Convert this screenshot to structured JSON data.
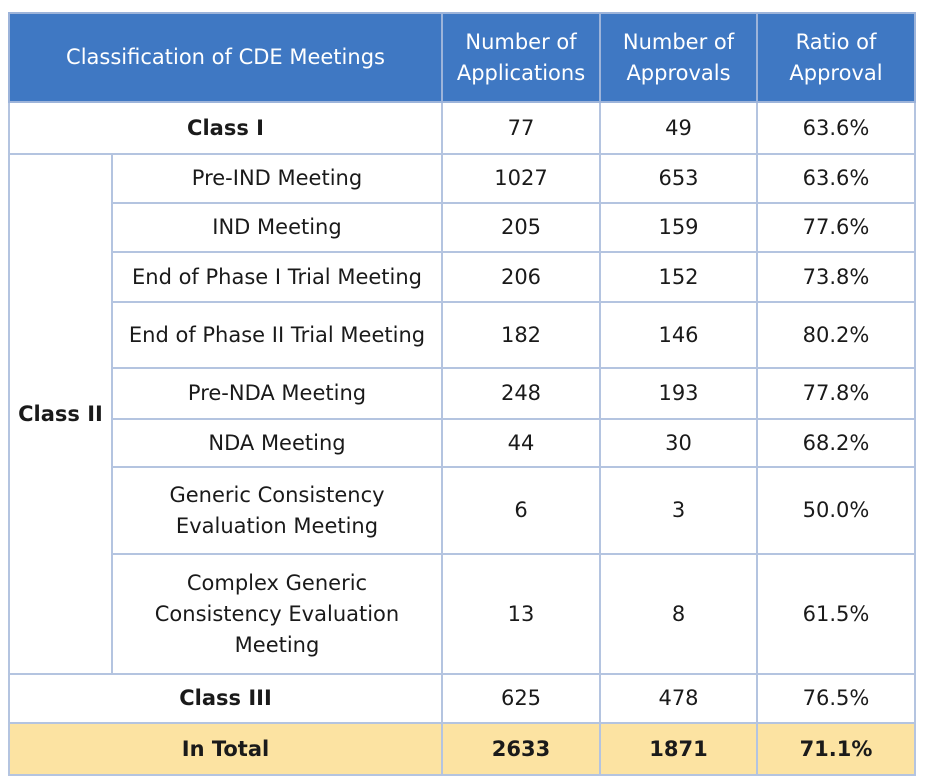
{
  "header": {
    "classification": "Classification of CDE Meetings",
    "applications": "Number of Applications",
    "approvals": "Number of Approvals",
    "ratio": "Ratio of Approval"
  },
  "class1": {
    "label": "Class I",
    "applications": "77",
    "approvals": "49",
    "ratio": "63.6%"
  },
  "class2": {
    "label": "Class II",
    "rows": [
      {
        "meeting": "Pre-IND Meeting",
        "applications": "1027",
        "approvals": "653",
        "ratio": "63.6%"
      },
      {
        "meeting": "IND Meeting",
        "applications": "205",
        "approvals": "159",
        "ratio": "77.6%"
      },
      {
        "meeting": "End of Phase I Trial Meeting",
        "applications": "206",
        "approvals": "152",
        "ratio": "73.8%"
      },
      {
        "meeting": "End of Phase II Trial Meeting",
        "applications": "182",
        "approvals": "146",
        "ratio": "80.2%"
      },
      {
        "meeting": "Pre-NDA Meeting",
        "applications": "248",
        "approvals": "193",
        "ratio": "77.8%"
      },
      {
        "meeting": "NDA Meeting",
        "applications": "44",
        "approvals": "30",
        "ratio": "68.2%"
      },
      {
        "meeting": "Generic Consistency Evaluation Meeting",
        "applications": "6",
        "approvals": "3",
        "ratio": "50.0%"
      },
      {
        "meeting": "Complex Generic Consistency Evaluation Meeting",
        "applications": "13",
        "approvals": "8",
        "ratio": "61.5%"
      }
    ]
  },
  "class3": {
    "label": "Class III",
    "applications": "625",
    "approvals": "478",
    "ratio": "76.5%"
  },
  "total": {
    "label": "In Total",
    "applications": "2633",
    "approvals": "1871",
    "ratio": "71.1%"
  },
  "colors": {
    "header_bg": "#3f78c3",
    "total_bg": "#fce3a2",
    "border": "#b4c4e0"
  }
}
